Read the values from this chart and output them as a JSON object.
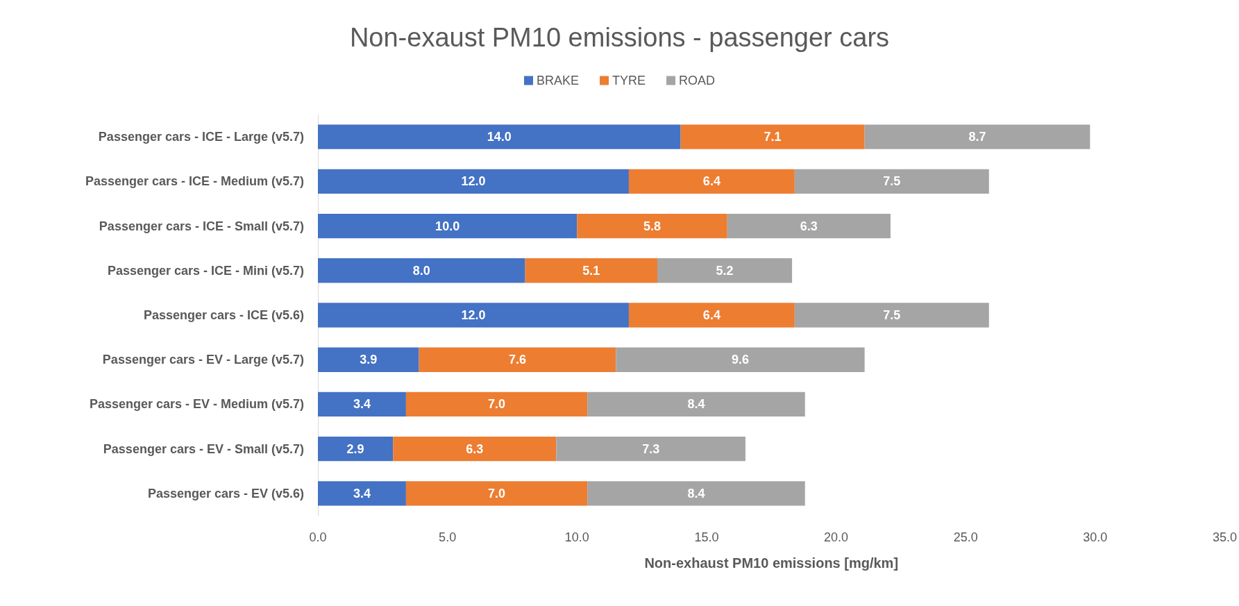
{
  "chart_data": {
    "type": "bar",
    "orientation": "horizontal",
    "stacked": true,
    "title": "Non-exaust PM10 emissions - passenger cars",
    "xlabel": "Non-exhaust PM10 emissions [mg/km]",
    "categories": [
      "Passenger cars - ICE - Large (v5.7)",
      "Passenger cars - ICE - Medium (v5.7)",
      "Passenger cars - ICE - Small (v5.7)",
      "Passenger cars - ICE - Mini (v5.7)",
      "Passenger cars - ICE (v5.6)",
      "Passenger cars - EV - Large (v5.7)",
      "Passenger cars - EV - Medium (v5.7)",
      "Passenger cars - EV - Small (v5.7)",
      "Passenger cars - EV (v5.6)"
    ],
    "series": [
      {
        "name": "BRAKE",
        "color": "#4472c4",
        "values": [
          14.0,
          12.0,
          10.0,
          8.0,
          12.0,
          3.9,
          3.4,
          2.9,
          3.4
        ],
        "value_labels": [
          "14.0",
          "12.0",
          "10.0",
          "8.0",
          "12.0",
          "3.9",
          "3.4",
          "2.9",
          "3.4"
        ]
      },
      {
        "name": "TYRE",
        "color": "#ed7d31",
        "values": [
          7.1,
          6.4,
          5.8,
          5.1,
          6.4,
          7.6,
          7.0,
          6.3,
          7.0
        ],
        "value_labels": [
          "7.1",
          "6.4",
          "5.8",
          "5.1",
          "6.4",
          "7.6",
          "7.0",
          "6.3",
          "7.0"
        ]
      },
      {
        "name": "ROAD",
        "color": "#a5a5a5",
        "values": [
          8.7,
          7.5,
          6.3,
          5.2,
          7.5,
          9.6,
          8.4,
          7.3,
          8.4
        ],
        "value_labels": [
          "8.7",
          "7.5",
          "6.3",
          "5.2",
          "7.5",
          "9.6",
          "8.4",
          "7.3",
          "8.4"
        ]
      }
    ],
    "xlim": [
      0,
      35
    ],
    "xticks": [
      {
        "value": 0,
        "label": "0.0"
      },
      {
        "value": 5,
        "label": "5.0"
      },
      {
        "value": 10,
        "label": "10.0"
      },
      {
        "value": 15,
        "label": "15.0"
      },
      {
        "value": 20,
        "label": "20.0"
      },
      {
        "value": 25,
        "label": "25.0"
      },
      {
        "value": 30,
        "label": "30.0"
      },
      {
        "value": 35,
        "label": "35.0"
      }
    ],
    "legend": "top"
  }
}
